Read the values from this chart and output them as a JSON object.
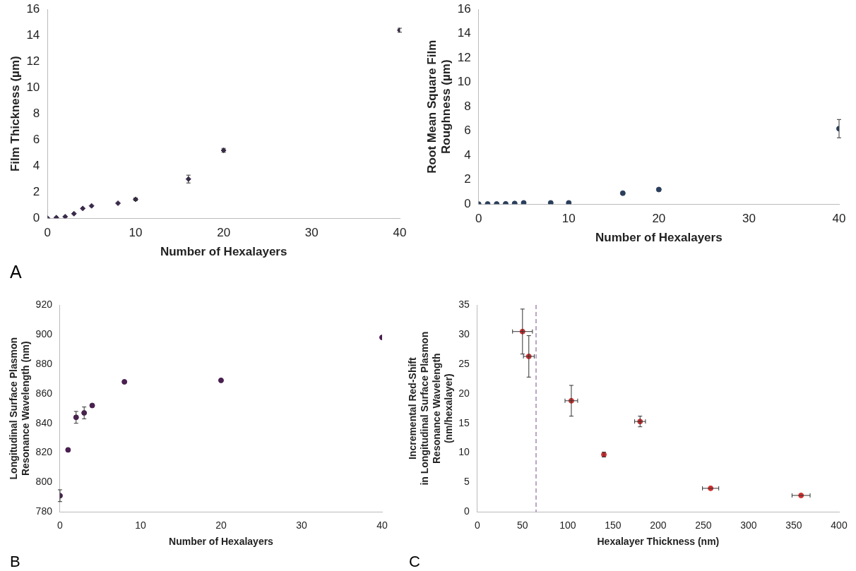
{
  "chart_data": [
    {
      "type": "scatter",
      "xlabel": "Number of Hexalayers",
      "ylabel": "Film Thickness (µm)",
      "annotations": [
        "A"
      ],
      "x": [
        0,
        1,
        2,
        3,
        4,
        5,
        8,
        10,
        16,
        20,
        40
      ],
      "values": [
        0,
        0.05,
        0.12,
        0.35,
        0.75,
        0.95,
        1.15,
        1.45,
        3.0,
        5.2,
        14.4
      ],
      "errors": [
        null,
        null,
        null,
        null,
        null,
        null,
        null,
        0.1,
        0.3,
        0.15,
        0.15
      ],
      "color": "#3a2a4a",
      "marker": "diamond",
      "xlim": [
        0,
        40
      ],
      "xticks": [
        0,
        10,
        20,
        30,
        40
      ],
      "ylim": [
        0,
        16
      ],
      "yticks": [
        0,
        2,
        4,
        6,
        8,
        10,
        12,
        14,
        16
      ],
      "grid": false,
      "legend": false
    },
    {
      "type": "scatter",
      "xlabel": "Number of Hexalayers",
      "ylabel": "Root Mean Square Film\nRoughness (µm)",
      "x": [
        0,
        1,
        2,
        3,
        4,
        5,
        8,
        10,
        16,
        20,
        40
      ],
      "values": [
        0,
        0.01,
        0.01,
        0.02,
        0.05,
        0.1,
        0.1,
        0.1,
        0.9,
        1.2,
        6.2
      ],
      "errors": [
        null,
        null,
        null,
        null,
        null,
        null,
        null,
        null,
        null,
        null,
        0.75
      ],
      "color": "#2b3f5c",
      "marker": "circle",
      "xlim": [
        0,
        40
      ],
      "xticks": [
        0,
        10,
        20,
        30,
        40
      ],
      "ylim": [
        0,
        16
      ],
      "yticks": [
        0,
        2,
        4,
        6,
        8,
        10,
        12,
        14,
        16
      ],
      "grid": false,
      "legend": false
    },
    {
      "type": "scatter",
      "xlabel": "Number of Hexalayers",
      "ylabel": "Longitudinal Surface Plasmon\nResonance Wavelength (nm)",
      "annotations": [
        "B"
      ],
      "x": [
        0,
        1,
        2,
        3,
        4,
        8,
        20,
        40
      ],
      "values": [
        791,
        822,
        844,
        847,
        852,
        868,
        869,
        898
      ],
      "errors": [
        4,
        null,
        4,
        4,
        null,
        null,
        null,
        null
      ],
      "color": "#4a2050",
      "marker": "circle",
      "xlim": [
        0,
        40
      ],
      "xticks": [
        0,
        10,
        20,
        30,
        40
      ],
      "ylim": [
        780,
        920
      ],
      "yticks": [
        780,
        800,
        820,
        840,
        860,
        880,
        900,
        920
      ],
      "grid": false,
      "legend": false
    },
    {
      "type": "scatter",
      "xlabel": "Hexalayer Thickness (nm)",
      "ylabel": "Incremental Red-Shift\nin Longitudinal Surface Plasmon\nResonance Wavelength\n(nm/hexalayer)",
      "annotations": [
        "C"
      ],
      "x": [
        50,
        57,
        104,
        140,
        180,
        258,
        358
      ],
      "values": [
        30.5,
        26.3,
        18.8,
        9.7,
        15.3,
        4.0,
        2.8
      ],
      "errors": [
        3.8,
        3.5,
        2.6,
        0.4,
        0.9,
        null,
        null
      ],
      "xerrors": [
        11,
        6,
        7,
        null,
        6,
        9,
        10
      ],
      "color": "#d03030",
      "marker": "circle",
      "xlim": [
        0,
        400
      ],
      "xticks": [
        0,
        50,
        100,
        150,
        200,
        250,
        300,
        350,
        400
      ],
      "ylim": [
        0,
        35
      ],
      "yticks": [
        0,
        5,
        10,
        15,
        20,
        25,
        30,
        35
      ],
      "grid": false,
      "legend": false,
      "ref_lines": [
        {
          "axis": "x",
          "value": 65,
          "color": "#7a4a8a",
          "line_style": "dashed"
        }
      ]
    }
  ]
}
